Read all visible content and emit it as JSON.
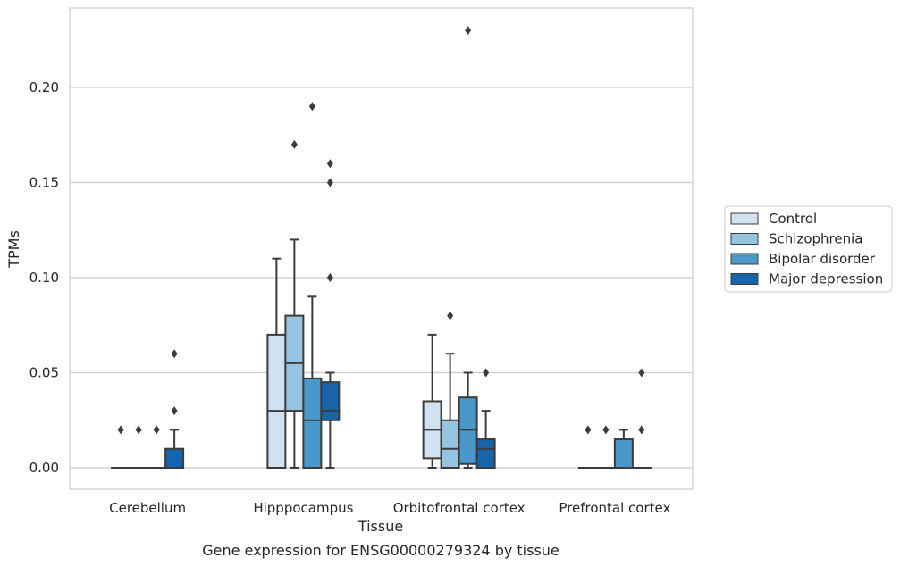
{
  "chart_data": {
    "type": "boxplot",
    "xlabel": "Tissue",
    "ylabel": "TPMs",
    "caption": "Gene expression for ENSG00000279324 by tissue",
    "ylim": [
      -0.011,
      0.242
    ],
    "yticks": [
      "0.00",
      "0.05",
      "0.10",
      "0.15",
      "0.20"
    ],
    "grid": "horizontal",
    "legend_placement": "right",
    "categories": [
      "Cerebellum",
      "Hipppocampus",
      "Orbitofrontal cortex",
      "Prefrontal cortex"
    ],
    "series": [
      {
        "name": "Control",
        "color": "#d0e1f2",
        "boxes": [
          {
            "low": 0,
            "q1": 0,
            "median": 0,
            "q3": 0,
            "high": 0,
            "outliers": [
              0.02
            ]
          },
          {
            "low": 0,
            "q1": 0,
            "median": 0.03,
            "q3": 0.07,
            "high": 0.11,
            "outliers": []
          },
          {
            "low": 0,
            "q1": 0.005,
            "median": 0.02,
            "q3": 0.035,
            "high": 0.07,
            "outliers": []
          },
          {
            "low": 0,
            "q1": 0,
            "median": 0,
            "q3": 0,
            "high": 0,
            "outliers": [
              0.02
            ]
          }
        ]
      },
      {
        "name": "Schizophrenia",
        "color": "#94c4df",
        "boxes": [
          {
            "low": 0,
            "q1": 0,
            "median": 0,
            "q3": 0,
            "high": 0,
            "outliers": [
              0.02
            ]
          },
          {
            "low": 0,
            "q1": 0.03,
            "median": 0.055,
            "q3": 0.08,
            "high": 0.12,
            "outliers": [
              0.17
            ]
          },
          {
            "low": 0,
            "q1": 0,
            "median": 0.01,
            "q3": 0.025,
            "high": 0.06,
            "outliers": [
              0.08
            ]
          },
          {
            "low": 0,
            "q1": 0,
            "median": 0,
            "q3": 0,
            "high": 0,
            "outliers": [
              0.02
            ]
          }
        ]
      },
      {
        "name": "Bipolar disorder",
        "color": "#4a98c9",
        "boxes": [
          {
            "low": 0,
            "q1": 0,
            "median": 0,
            "q3": 0,
            "high": 0,
            "outliers": [
              0.02
            ]
          },
          {
            "low": 0,
            "q1": 0,
            "median": 0.025,
            "q3": 0.047,
            "high": 0.09,
            "outliers": [
              0.19
            ]
          },
          {
            "low": 0,
            "q1": 0.002,
            "median": 0.02,
            "q3": 0.037,
            "high": 0.05,
            "outliers": [
              0.23
            ]
          },
          {
            "low": 0,
            "q1": 0,
            "median": 0,
            "q3": 0.015,
            "high": 0.02,
            "outliers": []
          }
        ]
      },
      {
        "name": "Major depression",
        "color": "#1764ab",
        "boxes": [
          {
            "low": 0,
            "q1": 0,
            "median": 0,
            "q3": 0.01,
            "high": 0.02,
            "outliers": [
              0.03,
              0.06
            ]
          },
          {
            "low": 0,
            "q1": 0.025,
            "median": 0.03,
            "q3": 0.045,
            "high": 0.05,
            "outliers": [
              0.1,
              0.15,
              0.16
            ]
          },
          {
            "low": 0,
            "q1": 0,
            "median": 0.01,
            "q3": 0.015,
            "high": 0.03,
            "outliers": [
              0.05
            ]
          },
          {
            "low": 0,
            "q1": 0,
            "median": 0,
            "q3": 0,
            "high": 0,
            "outliers": [
              0.02,
              0.05
            ]
          }
        ]
      }
    ]
  }
}
